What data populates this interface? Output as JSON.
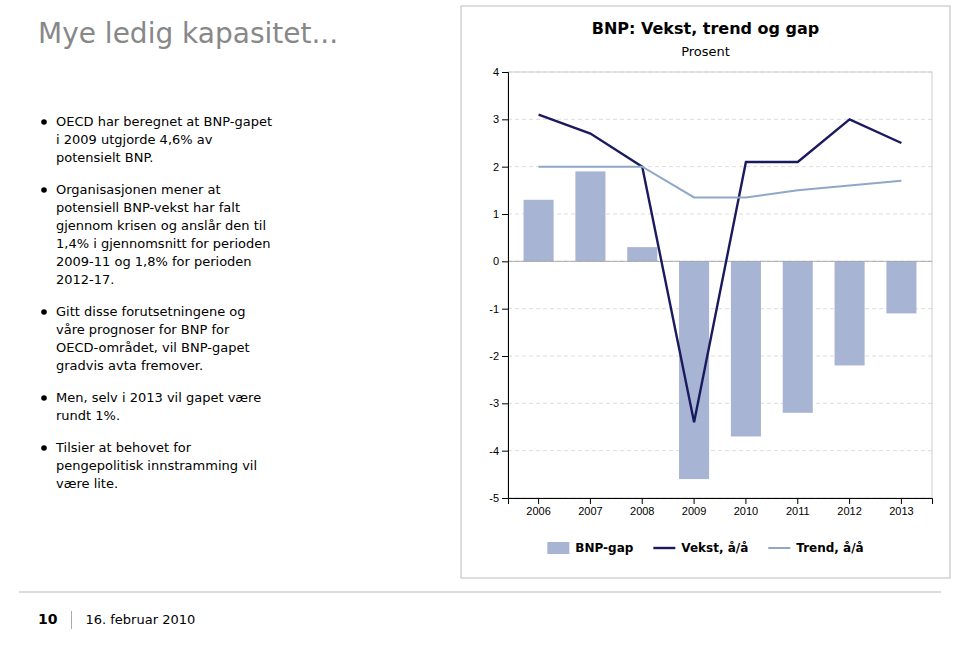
{
  "heading": "Mye ledig kapasitet...",
  "bullets": [
    [
      "OECD har beregnet at BNP-gapet",
      "i 2009 utgjorde 4,6% av",
      "potensielt BNP."
    ],
    [
      "Organisasjonen mener at",
      "potensiell BNP-vekst har falt",
      "gjennom krisen og anslår den til",
      "1,4% i gjennomsnitt for perioden",
      "2009-11 og 1,8% for perioden",
      "2012-17."
    ],
    [
      "Gitt disse forutsetningene og",
      "våre prognoser for BNP for",
      "OECD-området, vil BNP-gapet",
      "gradvis avta fremover."
    ],
    [
      "Men, selv i 2013 vil gapet være",
      "rundt 1%."
    ],
    [
      "Tilsier at behovet for",
      "pengepolitisk innstramming vil",
      "være lite."
    ]
  ],
  "footer": {
    "page": "10",
    "date": "16. februar 2010"
  },
  "chart_data": {
    "type": "bar",
    "title": "BNP: Vekst, trend og gap",
    "subtitle": "Prosent",
    "categories": [
      "2006",
      "2007",
      "2008",
      "2009",
      "2010",
      "2011",
      "2012",
      "2013"
    ],
    "series": [
      {
        "name": "BNP-gap",
        "type": "bar",
        "color": "#a8b4d4",
        "values": [
          1.3,
          1.9,
          0.3,
          -4.6,
          -3.7,
          -3.2,
          -2.2,
          -1.1
        ]
      },
      {
        "name": "Vekst, å/å",
        "type": "line",
        "color": "#1a1a5e",
        "values": [
          3.1,
          2.7,
          2.0,
          -3.4,
          2.1,
          2.1,
          3.0,
          2.5
        ]
      },
      {
        "name": "Trend, å/å",
        "type": "line",
        "color": "#8fa8c8",
        "values": [
          2.0,
          2.0,
          2.0,
          1.35,
          1.35,
          1.5,
          1.6,
          1.7
        ]
      }
    ],
    "ylim": [
      -5,
      4
    ],
    "yticks": [
      -5,
      -4,
      -3,
      -2,
      -1,
      0,
      1,
      2,
      3,
      4
    ],
    "grid": true,
    "legend": "bottom"
  }
}
